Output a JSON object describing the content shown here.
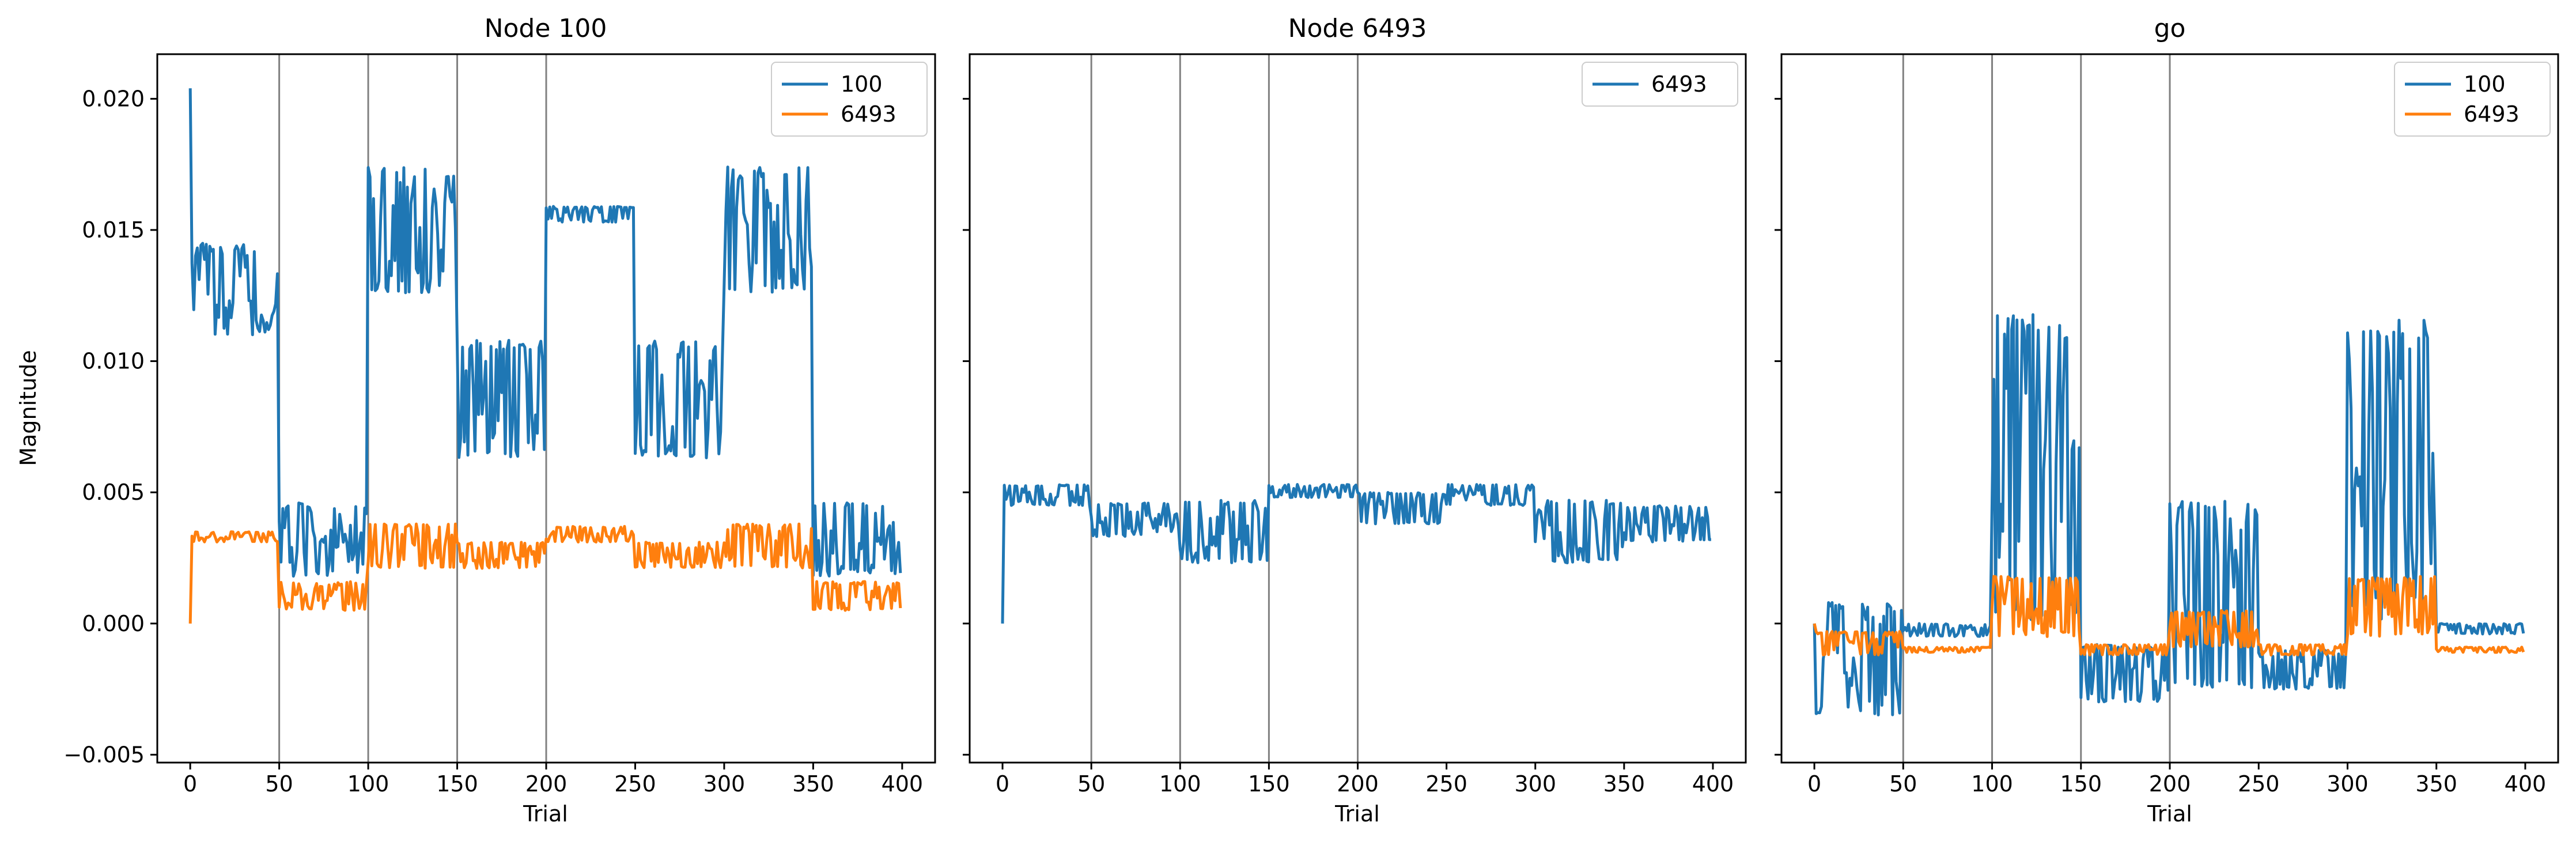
{
  "figure": {
    "ylabel": "Magnitude",
    "colors": {
      "series_100": "#1f77b4",
      "series_6493": "#ff7f0e",
      "vline": "#808080"
    }
  },
  "chart_data": [
    {
      "type": "line",
      "title": "Node 100",
      "xlabel": "Trial",
      "ylabel": "Magnitude",
      "xlim": [
        -18.5,
        418.5
      ],
      "ylim": [
        -0.0053,
        0.0217
      ],
      "xticks": [
        "0",
        "50",
        "100",
        "150",
        "200",
        "250",
        "300",
        "350",
        "400"
      ],
      "yticks": [
        "−0.005",
        "0.000",
        "0.005",
        "0.010",
        "0.015",
        "0.020"
      ],
      "vlines": [
        50,
        100,
        150,
        200
      ],
      "legend": {
        "position": "top-right",
        "entries": [
          "100",
          "6493"
        ]
      },
      "series": [
        {
          "name": "100",
          "color": "#1f77b4",
          "segments": [
            {
              "start": 0,
              "end": 1,
              "low": 0.0204,
              "high": 0.0204
            },
            {
              "start": 1,
              "end": 50,
              "low": 0.011,
              "high": 0.0145
            },
            {
              "start": 50,
              "end": 100,
              "low": 0.0018,
              "high": 0.0046
            },
            {
              "start": 100,
              "end": 150,
              "low": 0.0126,
              "high": 0.0174
            },
            {
              "start": 150,
              "end": 200,
              "low": 0.0063,
              "high": 0.0108
            },
            {
              "start": 200,
              "end": 250,
              "low": 0.0153,
              "high": 0.0159
            },
            {
              "start": 250,
              "end": 300,
              "low": 0.0063,
              "high": 0.0108
            },
            {
              "start": 300,
              "end": 350,
              "low": 0.0126,
              "high": 0.0174
            },
            {
              "start": 350,
              "end": 400,
              "low": 0.0018,
              "high": 0.0046
            }
          ]
        },
        {
          "name": "6493",
          "color": "#ff7f0e",
          "segments": [
            {
              "start": 0,
              "end": 1,
              "low": 0.0,
              "high": 0.0
            },
            {
              "start": 1,
              "end": 50,
              "low": 0.0031,
              "high": 0.0035
            },
            {
              "start": 50,
              "end": 100,
              "low": 0.0005,
              "high": 0.0016
            },
            {
              "start": 100,
              "end": 150,
              "low": 0.0021,
              "high": 0.0038
            },
            {
              "start": 150,
              "end": 200,
              "low": 0.0021,
              "high": 0.0031
            },
            {
              "start": 200,
              "end": 250,
              "low": 0.0031,
              "high": 0.0037
            },
            {
              "start": 250,
              "end": 300,
              "low": 0.0021,
              "high": 0.0031
            },
            {
              "start": 300,
              "end": 350,
              "low": 0.0021,
              "high": 0.0038
            },
            {
              "start": 350,
              "end": 400,
              "low": 0.0005,
              "high": 0.0016
            }
          ]
        }
      ]
    },
    {
      "type": "line",
      "title": "Node 6493",
      "xlabel": "Trial",
      "xlim": [
        -18.5,
        418.5
      ],
      "ylim": [
        -0.0053,
        0.0217
      ],
      "xticks": [
        "0",
        "50",
        "100",
        "150",
        "200",
        "250",
        "300",
        "350",
        "400"
      ],
      "vlines": [
        50,
        100,
        150,
        200
      ],
      "legend": {
        "position": "top-right",
        "entries": [
          "6493"
        ]
      },
      "series": [
        {
          "name": "6493",
          "color": "#1f77b4",
          "segments": [
            {
              "start": 0,
              "end": 1,
              "low": 0.0,
              "high": 0.0
            },
            {
              "start": 1,
              "end": 50,
              "low": 0.0045,
              "high": 0.0053
            },
            {
              "start": 50,
              "end": 100,
              "low": 0.0033,
              "high": 0.0046
            },
            {
              "start": 100,
              "end": 150,
              "low": 0.0023,
              "high": 0.0047
            },
            {
              "start": 150,
              "end": 200,
              "low": 0.0048,
              "high": 0.0053
            },
            {
              "start": 200,
              "end": 250,
              "low": 0.0038,
              "high": 0.005
            },
            {
              "start": 250,
              "end": 300,
              "low": 0.0045,
              "high": 0.0053
            },
            {
              "start": 300,
              "end": 350,
              "low": 0.0023,
              "high": 0.0047
            },
            {
              "start": 350,
              "end": 400,
              "low": 0.0031,
              "high": 0.0045
            }
          ]
        }
      ]
    },
    {
      "type": "line",
      "title": "go",
      "xlabel": "Trial",
      "xlim": [
        -18.5,
        418.5
      ],
      "ylim": [
        -0.0053,
        0.0217
      ],
      "xticks": [
        "0",
        "50",
        "100",
        "150",
        "200",
        "250",
        "300",
        "350",
        "400"
      ],
      "vlines": [
        50,
        100,
        150,
        200
      ],
      "legend": {
        "position": "top-right",
        "entries": [
          "100",
          "6493"
        ]
      },
      "series": [
        {
          "name": "100",
          "color": "#1f77b4",
          "segments": [
            {
              "start": 0,
              "end": 1,
              "low": 0.0,
              "high": 0.0
            },
            {
              "start": 1,
              "end": 50,
              "low": -0.0035,
              "high": 0.0008
            },
            {
              "start": 50,
              "end": 100,
              "low": -0.0005,
              "high": 0.0
            },
            {
              "start": 100,
              "end": 150,
              "low": 0.0001,
              "high": 0.0118
            },
            {
              "start": 150,
              "end": 200,
              "low": -0.003,
              "high": -0.0008
            },
            {
              "start": 200,
              "end": 250,
              "low": -0.0025,
              "high": 0.0047
            },
            {
              "start": 250,
              "end": 300,
              "low": -0.0025,
              "high": -0.001
            },
            {
              "start": 300,
              "end": 350,
              "low": 0.0001,
              "high": 0.0118
            },
            {
              "start": 350,
              "end": 400,
              "low": -0.0004,
              "high": 0.0
            }
          ]
        },
        {
          "name": "6493",
          "color": "#ff7f0e",
          "segments": [
            {
              "start": 0,
              "end": 1,
              "low": 0.0,
              "high": 0.0
            },
            {
              "start": 1,
              "end": 50,
              "low": -0.0012,
              "high": -0.0003
            },
            {
              "start": 50,
              "end": 100,
              "low": -0.0011,
              "high": -0.0009
            },
            {
              "start": 100,
              "end": 150,
              "low": -0.0005,
              "high": 0.0018
            },
            {
              "start": 150,
              "end": 200,
              "low": -0.0012,
              "high": -0.0008
            },
            {
              "start": 200,
              "end": 250,
              "low": -0.0009,
              "high": 0.0005
            },
            {
              "start": 250,
              "end": 300,
              "low": -0.0012,
              "high": -0.0008
            },
            {
              "start": 300,
              "end": 350,
              "low": -0.0005,
              "high": 0.0018
            },
            {
              "start": 350,
              "end": 400,
              "low": -0.0011,
              "high": -0.0009
            }
          ]
        }
      ]
    }
  ]
}
